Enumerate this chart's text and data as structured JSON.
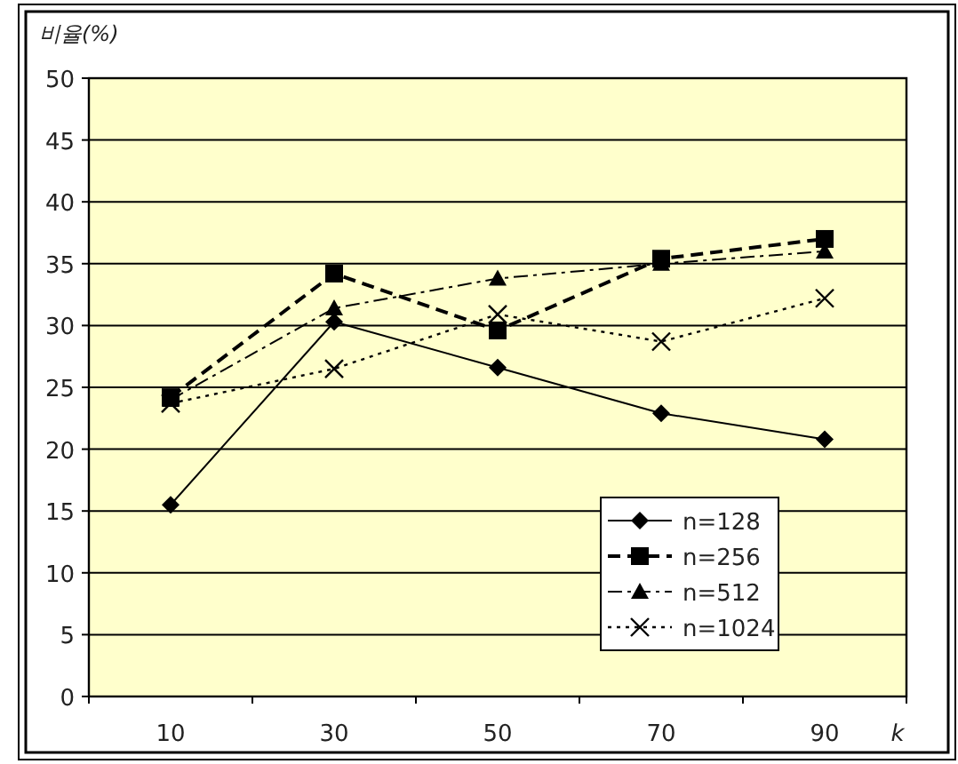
{
  "chart_data": {
    "type": "line",
    "xlabel": "k",
    "ylabel": "비율(%)",
    "categories": [
      "10",
      "30",
      "50",
      "70",
      "90"
    ],
    "ylim": [
      0,
      50
    ],
    "yticks": [
      0,
      5,
      10,
      15,
      20,
      25,
      30,
      35,
      40,
      45,
      50
    ],
    "grid": "y",
    "legend": "bottom right",
    "series": [
      {
        "name": "n=128",
        "color": "#000000",
        "marker": "diamond",
        "line_style": "solid",
        "values": [
          15.5,
          30.3,
          26.6,
          22.9,
          20.8
        ]
      },
      {
        "name": "n=256",
        "color": "#000000",
        "marker": "square",
        "line_style": "dashed",
        "values": [
          24.2,
          34.2,
          29.6,
          35.4,
          37.0
        ]
      },
      {
        "name": "n=512",
        "color": "#000000",
        "marker": "triangle",
        "line_style": "dashdot",
        "values": [
          24.0,
          31.4,
          33.8,
          35.0,
          36.0
        ]
      },
      {
        "name": "n=1024",
        "color": "#000000",
        "marker": "cross",
        "line_style": "dotted",
        "values": [
          23.7,
          26.5,
          30.9,
          28.7,
          32.2
        ]
      }
    ]
  }
}
